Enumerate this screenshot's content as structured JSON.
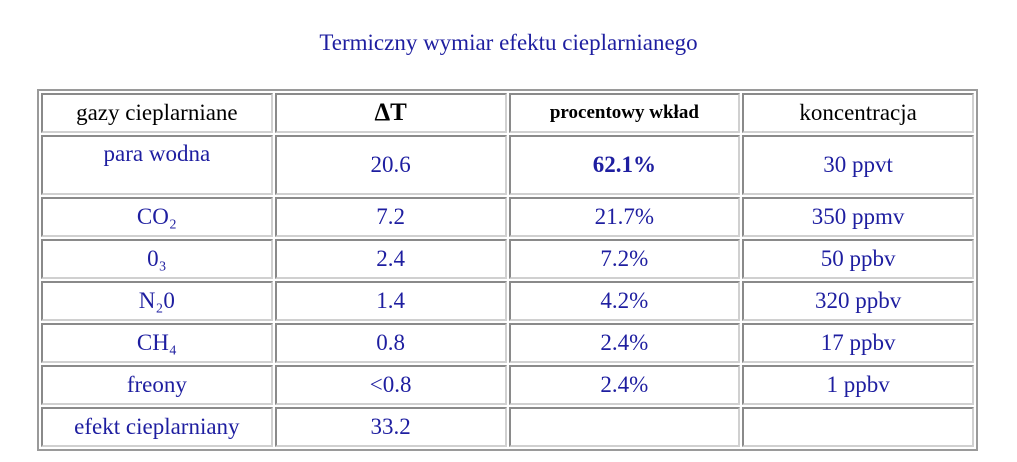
{
  "title": "Termiczny wymiar efektu cieplarnianego",
  "table": {
    "header": [
      "gazy cieplarniane",
      "ΔT",
      "procentowy wkład",
      "koncentracja"
    ],
    "rows": [
      [
        "para wodna",
        "20.6",
        "62.1%",
        "30 ppvt"
      ],
      [
        "CO₂",
        "7.2",
        "21.7%",
        "350 ppmv"
      ],
      [
        "0₃",
        "2.4",
        "7.2%",
        "50 ppbv"
      ],
      [
        "N₂0",
        "1.4",
        "4.2%",
        "320 ppbv"
      ],
      [
        "CH₄",
        "0.8",
        "2.4%",
        "17 ppbv"
      ],
      [
        "freony",
        "<0.8",
        "2.4%",
        "1 ppbv"
      ],
      [
        "efekt cieplarniany",
        "33.2"
      ]
    ]
  }
}
